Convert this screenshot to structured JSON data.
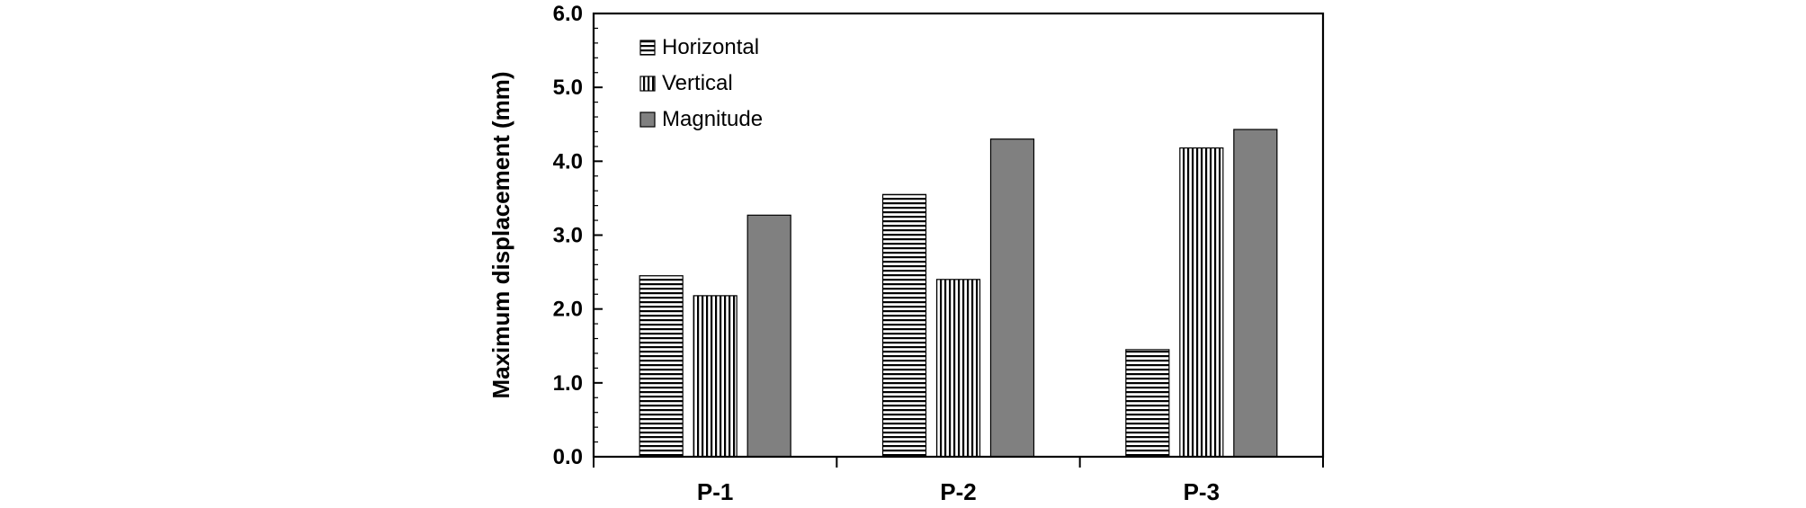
{
  "chart_data": {
    "type": "bar",
    "categories": [
      "P-1",
      "P-2",
      "P-3"
    ],
    "series": [
      {
        "name": "Horizontal",
        "values": [
          2.45,
          3.55,
          1.45
        ],
        "pattern": "horizontal-stripes",
        "color": "#000000"
      },
      {
        "name": "Vertical",
        "values": [
          2.18,
          2.4,
          4.18
        ],
        "pattern": "vertical-stripes",
        "color": "#000000"
      },
      {
        "name": "Magnitude",
        "values": [
          3.27,
          4.3,
          4.43
        ],
        "pattern": "solid",
        "color": "#808080"
      }
    ],
    "title": "",
    "xlabel": "",
    "ylabel": "Maximum displacement (mm)",
    "ylim": [
      0,
      6
    ],
    "yticks": [
      "0.0",
      "1.0",
      "2.0",
      "3.0",
      "4.0",
      "5.0",
      "6.0"
    ],
    "grid": false,
    "legend_position": "top-left"
  }
}
